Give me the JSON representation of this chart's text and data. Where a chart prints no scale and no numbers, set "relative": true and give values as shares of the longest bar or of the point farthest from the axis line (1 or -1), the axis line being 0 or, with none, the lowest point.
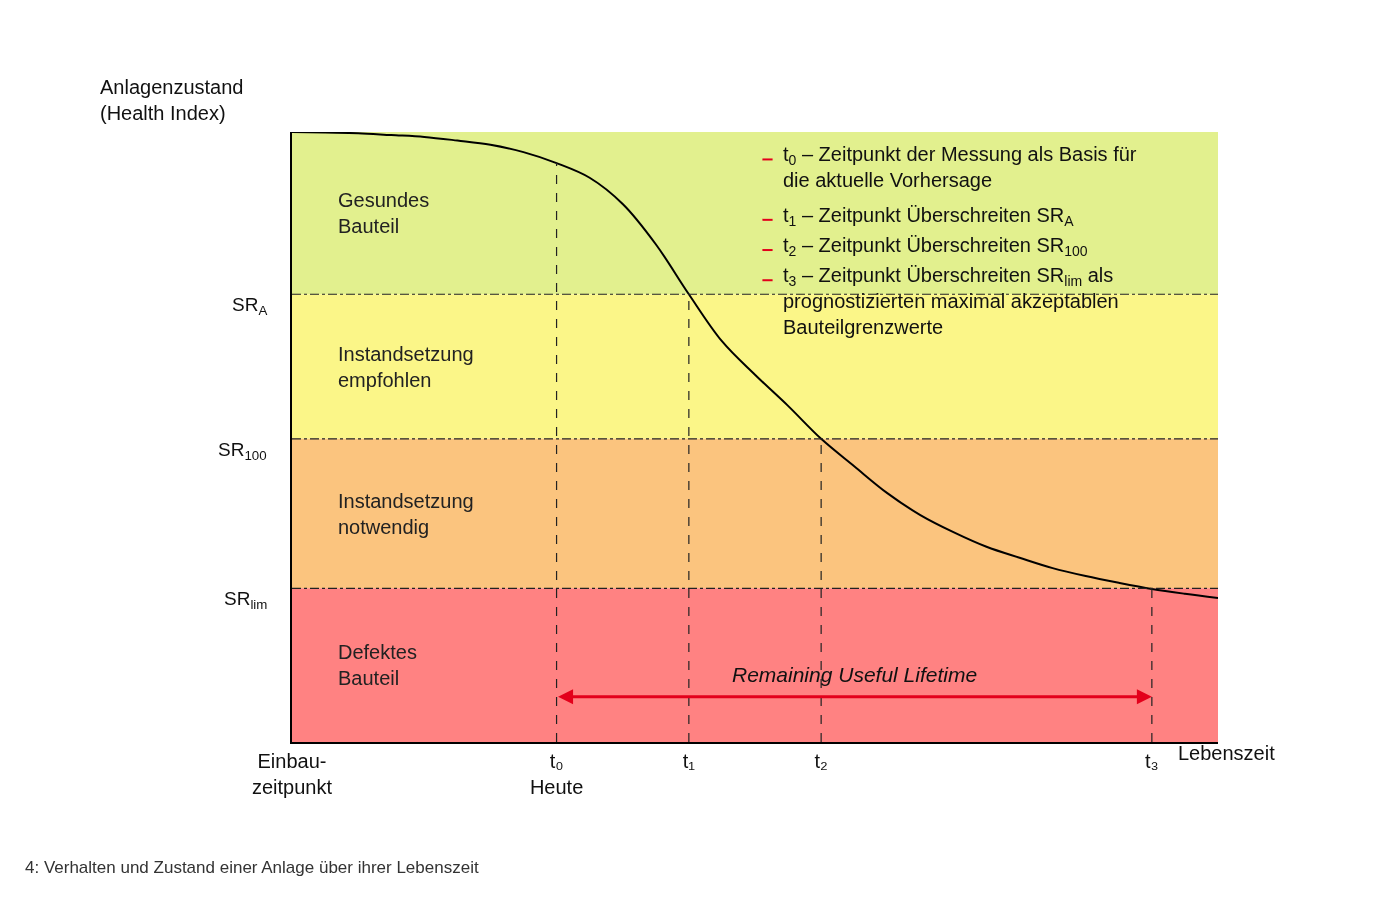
{
  "chart_data": {
    "type": "line",
    "relative": true,
    "xlabel": "Lebenszeit",
    "ylabel": "Anlagenzustand\n(Health Index)",
    "categories": [
      "Einbau-\nzeitpunkt",
      null,
      null,
      null,
      null,
      null,
      null,
      null,
      "t₀\nHeute",
      null,
      null,
      null,
      "t₁",
      null,
      null,
      null,
      "t₂",
      null,
      null,
      null,
      null,
      null,
      null,
      null,
      null,
      null,
      "t₃",
      null,
      null
    ],
    "series": [
      {
        "color": "#000000",
        "values": [
          1.0,
          0.999,
          0.998,
          0.995,
          0.992,
          0.986,
          0.979,
          0.967,
          0.949,
          0.925,
          0.882,
          0.816,
          0.734,
          0.657,
          0.602,
          0.551,
          0.497,
          0.452,
          0.408,
          0.372,
          0.344,
          0.32,
          0.302,
          0.285,
          0.272,
          0.261,
          0.251,
          0.243,
          0.236
        ]
      }
    ],
    "marker": "none",
    "grid": false,
    "legend": false,
    "ref_lines": [
      {
        "axis": "y",
        "value": 0.734,
        "label": "SR$_{A}$"
      },
      {
        "axis": "y",
        "value": 0.497,
        "label": "SR$_{100}$"
      },
      {
        "axis": "y",
        "value": 0.252,
        "label": "SR$_{lim}$"
      },
      {
        "axis": "x",
        "value": "t₀\nHeute"
      },
      {
        "axis": "x",
        "value": "t₁"
      },
      {
        "axis": "x",
        "value": "t₂"
      },
      {
        "axis": "x",
        "value": "t₃"
      }
    ],
    "bands": [
      {
        "axis": "y",
        "from": 0.734,
        "to": 1.0,
        "label": "Gesundes\nBauteil",
        "color": "#e2f08e"
      },
      {
        "axis": "y",
        "from": 0.497,
        "to": 0.734,
        "label": "Instandsetzung\nempfohlen",
        "color": "#fbf688"
      },
      {
        "axis": "y",
        "from": 0.252,
        "to": 0.497,
        "label": "Instandsetzung\nnotwendig",
        "color": "#fbc47e"
      },
      {
        "axis": "y",
        "from": 0,
        "to": 0.252,
        "label": "Defektes\nBauteil",
        "color": "#ff8282"
      }
    ],
    "annotations": [
      "t$_{0}$ – Zeitpunkt der Messung als Basis für\ndie aktuelle Vorhersage",
      "t$_{1}$ – Zeitpunkt Überschreiten SR$_{A}$",
      "t$_{2}$ – Zeitpunkt Überschreiten SR$_{100}$",
      "t$_{3}$ – Zeitpunkt Überschreiten SR$_{lim}$ als\nprognostizierten maximal akzeptablen\nBauteilgrenzwerte",
      "4: Verhalten und Zustand einer Anlage über ihrer Lebenszeit",
      "Remaining Useful Lifetime"
    ]
  }
}
